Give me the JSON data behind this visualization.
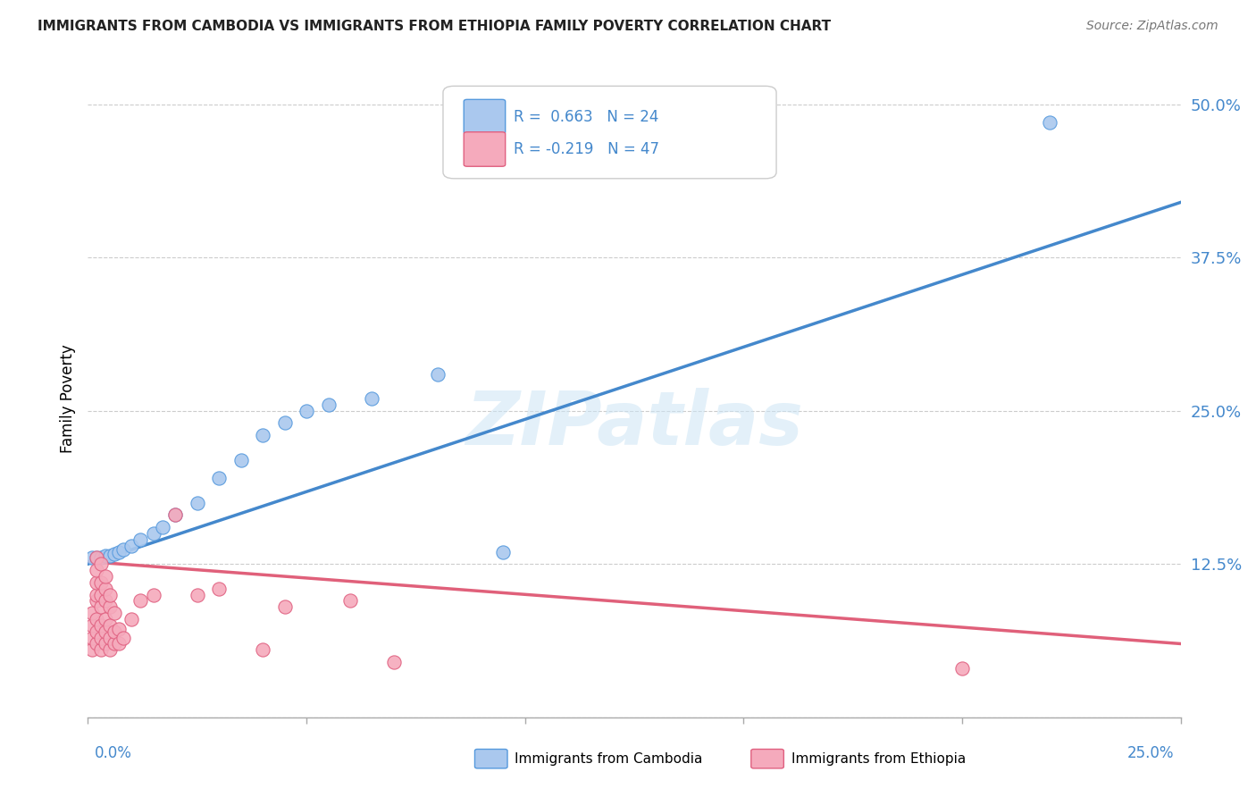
{
  "title": "IMMIGRANTS FROM CAMBODIA VS IMMIGRANTS FROM ETHIOPIA FAMILY POVERTY CORRELATION CHART",
  "source": "Source: ZipAtlas.com",
  "ylabel": "Family Poverty",
  "ytick_labels": [
    "",
    "12.5%",
    "25.0%",
    "37.5%",
    "50.0%"
  ],
  "ytick_values": [
    0.0,
    0.125,
    0.25,
    0.375,
    0.5
  ],
  "xlim": [
    0.0,
    0.25
  ],
  "ylim": [
    0.0,
    0.52
  ],
  "watermark": "ZIPatlas",
  "cambodia_fill": "#aac8ee",
  "cambodia_edge": "#5599dd",
  "ethiopia_fill": "#f5aabc",
  "ethiopia_edge": "#e06080",
  "cambodia_line": "#4488cc",
  "ethiopia_line": "#e0607a",
  "tick_color": "#4488cc",
  "grid_color": "#cccccc",
  "cambodia_scatter": [
    [
      0.001,
      0.13
    ],
    [
      0.002,
      0.13
    ],
    [
      0.003,
      0.13
    ],
    [
      0.004,
      0.132
    ],
    [
      0.005,
      0.132
    ],
    [
      0.006,
      0.133
    ],
    [
      0.007,
      0.135
    ],
    [
      0.008,
      0.137
    ],
    [
      0.01,
      0.14
    ],
    [
      0.012,
      0.145
    ],
    [
      0.015,
      0.15
    ],
    [
      0.017,
      0.155
    ],
    [
      0.02,
      0.165
    ],
    [
      0.025,
      0.175
    ],
    [
      0.03,
      0.195
    ],
    [
      0.035,
      0.21
    ],
    [
      0.04,
      0.23
    ],
    [
      0.045,
      0.24
    ],
    [
      0.05,
      0.25
    ],
    [
      0.055,
      0.255
    ],
    [
      0.065,
      0.26
    ],
    [
      0.08,
      0.28
    ],
    [
      0.095,
      0.135
    ],
    [
      0.22,
      0.485
    ]
  ],
  "ethiopia_scatter": [
    [
      0.001,
      0.055
    ],
    [
      0.001,
      0.065
    ],
    [
      0.001,
      0.075
    ],
    [
      0.001,
      0.085
    ],
    [
      0.002,
      0.06
    ],
    [
      0.002,
      0.07
    ],
    [
      0.002,
      0.08
    ],
    [
      0.002,
      0.095
    ],
    [
      0.002,
      0.1
    ],
    [
      0.002,
      0.11
    ],
    [
      0.002,
      0.12
    ],
    [
      0.002,
      0.13
    ],
    [
      0.003,
      0.055
    ],
    [
      0.003,
      0.065
    ],
    [
      0.003,
      0.075
    ],
    [
      0.003,
      0.09
    ],
    [
      0.003,
      0.1
    ],
    [
      0.003,
      0.11
    ],
    [
      0.003,
      0.125
    ],
    [
      0.004,
      0.06
    ],
    [
      0.004,
      0.07
    ],
    [
      0.004,
      0.08
    ],
    [
      0.004,
      0.095
    ],
    [
      0.004,
      0.105
    ],
    [
      0.004,
      0.115
    ],
    [
      0.005,
      0.055
    ],
    [
      0.005,
      0.065
    ],
    [
      0.005,
      0.075
    ],
    [
      0.005,
      0.09
    ],
    [
      0.005,
      0.1
    ],
    [
      0.006,
      0.06
    ],
    [
      0.006,
      0.07
    ],
    [
      0.006,
      0.085
    ],
    [
      0.007,
      0.06
    ],
    [
      0.007,
      0.072
    ],
    [
      0.008,
      0.065
    ],
    [
      0.01,
      0.08
    ],
    [
      0.012,
      0.095
    ],
    [
      0.015,
      0.1
    ],
    [
      0.02,
      0.165
    ],
    [
      0.025,
      0.1
    ],
    [
      0.03,
      0.105
    ],
    [
      0.04,
      0.055
    ],
    [
      0.045,
      0.09
    ],
    [
      0.06,
      0.095
    ],
    [
      0.07,
      0.045
    ],
    [
      0.2,
      0.04
    ]
  ],
  "cam_line_x": [
    0.0,
    0.25
  ],
  "cam_line_y": [
    0.125,
    0.42
  ],
  "eth_line_x": [
    0.0,
    0.25
  ],
  "eth_line_y": [
    0.127,
    0.06
  ]
}
